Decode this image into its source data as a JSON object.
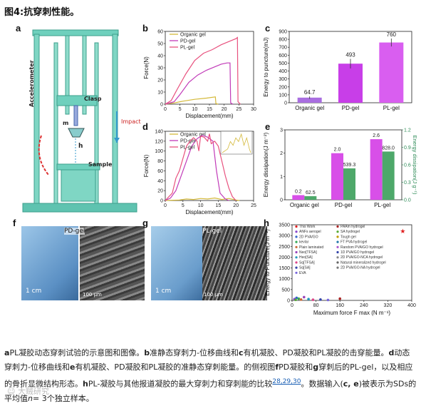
{
  "figure_title": "图4:抗穿刺性能。",
  "panels": {
    "a": {
      "label": "a",
      "clasp": "Clasp",
      "accelerometer": "Accelerometer",
      "m": "m",
      "h": "h",
      "impact": "Impact",
      "sample": "Sample"
    },
    "b": {
      "label": "b",
      "xlabel": "Displacement(mm)",
      "ylabel": "Force(N)",
      "legend": [
        "Organic gel",
        "PD-gel",
        "PL-gel"
      ]
    },
    "c": {
      "label": "c",
      "ylabel": "Energy to puncture(mJ)",
      "bar_labels": [
        "64.7",
        "493",
        "760"
      ]
    },
    "d": {
      "label": "d",
      "xlabel": "Displacement(mm)",
      "ylabel": "Force(N)",
      "legend": [
        "Organic gel",
        "PD-gel",
        "PL-gel"
      ]
    },
    "e": {
      "label": "e",
      "ylabel_left": "Energy dissipation(J m⁻²)",
      "ylabel_right": "Energy dissipation(J g⁻¹)",
      "bar_labels": [
        "0.2",
        "62.5",
        "2.0",
        "539.3",
        "2.6",
        "828.0"
      ]
    },
    "f": {
      "label": "f",
      "inset": "PD-gel",
      "scale_1": "1 cm",
      "scale_2": "100 μm"
    },
    "g": {
      "label": "g",
      "inset": "PL-gel",
      "scale_1": "1 cm",
      "scale_2": "100 μm"
    },
    "h": {
      "label": "h",
      "xlabel": "Maximum force F",
      "xlabel_sub": "max",
      "xlabel_unit": "(N m⁻¹)",
      "ylabel": "Energy to Puncture(J m⁻²)",
      "legend_left": [
        "This Work",
        "ANFs aerogel",
        "2D PVA/GO",
        "kevlar",
        "Plain laminated",
        "Neo[TFSA]",
        "Heo[SA]",
        "Sq[TFSA]",
        "Sq[SA]",
        "EVA"
      ],
      "legend_right": [
        "PAAm hydrogel",
        "SA hydrogel",
        "Tough gel",
        "FT PVA hydrogel",
        "Random PVA/GO hydrogel",
        "1D PVA/GO hydrogel",
        "2D PVA/GO-NCA hydrogel",
        "Natural mineralized hydrogel",
        "2D PVA/GO-NA hydrogel"
      ]
    }
  },
  "chart_data": [
    {
      "id": "b",
      "type": "line",
      "xlabel": "Displacement(mm)",
      "ylabel": "Force(N)",
      "xlim": [
        0,
        30
      ],
      "ylim": [
        0,
        60
      ],
      "xticks": [
        0,
        5,
        10,
        15,
        20,
        25,
        30
      ],
      "yticks": [
        0,
        10,
        20,
        30,
        40,
        50,
        60
      ],
      "series": [
        {
          "name": "Organic gel",
          "color": "#d4b93a",
          "x": [
            0,
            3,
            6,
            10,
            14,
            17,
            17.2,
            18
          ],
          "y": [
            0,
            1,
            2.5,
            4,
            5,
            6,
            0.5,
            0
          ]
        },
        {
          "name": "PD-gel",
          "color": "#c13ab8",
          "x": [
            0,
            3,
            5,
            8,
            11,
            14,
            17,
            19,
            21,
            22,
            22.2,
            23
          ],
          "y": [
            0,
            2,
            8,
            18,
            24,
            28,
            31,
            33,
            34,
            34,
            1,
            0
          ]
        },
        {
          "name": "PL-gel",
          "color": "#e8517e",
          "x": [
            0,
            2,
            4,
            7,
            10,
            13,
            16,
            19,
            22,
            24,
            24.5,
            24.7,
            25.5
          ],
          "y": [
            0,
            3,
            12,
            25,
            36,
            42,
            45,
            49,
            52,
            54,
            55,
            2,
            0
          ]
        }
      ]
    },
    {
      "id": "c",
      "type": "bar",
      "ylabel": "Energy to puncture(mJ)",
      "categories": [
        "Organic gel",
        "PD-gel",
        "PL-gel"
      ],
      "values": [
        64.7,
        493,
        760
      ],
      "errors": [
        15,
        60,
        50
      ],
      "ylim": [
        0,
        900
      ],
      "yticks": [
        0,
        100,
        200,
        300,
        400,
        500,
        600,
        700,
        800,
        900
      ],
      "colors": [
        "#a96ee0",
        "#c83ee8",
        "#d95ef0"
      ]
    },
    {
      "id": "d",
      "type": "line",
      "xlabel": "Displacement(mm)",
      "ylabel": "Force(N)",
      "xlim": [
        0,
        25
      ],
      "ylim": [
        0,
        140
      ],
      "xticks": [
        0,
        5,
        10,
        15,
        20,
        25
      ],
      "yticks": [
        0,
        20,
        40,
        60,
        80,
        100,
        120,
        140
      ],
      "series": [
        {
          "name": "Organic gel",
          "color": "#d4b93a",
          "x": [
            0,
            4,
            6,
            8,
            10,
            12,
            14,
            16,
            18,
            20,
            21
          ],
          "y": [
            0,
            1,
            3,
            2,
            4,
            3,
            5,
            2,
            4,
            1,
            0
          ]
        },
        {
          "name": "PD-gel",
          "color": "#c13ab8",
          "x": [
            0,
            1.5,
            3,
            4.5,
            6,
            7.5,
            9,
            10.5,
            12,
            13.5,
            14.5,
            15.5,
            17,
            18
          ],
          "y": [
            0,
            5,
            20,
            50,
            80,
            110,
            125,
            132,
            128,
            120,
            60,
            15,
            3,
            0
          ]
        },
        {
          "name": "PL-gel",
          "color": "#e8517e",
          "x": [
            0,
            2,
            3,
            4,
            5,
            6,
            7,
            8,
            9,
            9.5,
            10,
            11,
            12,
            12.5,
            13,
            14,
            15,
            16,
            17,
            18,
            19,
            20
          ],
          "y": [
            0,
            15,
            45,
            60,
            85,
            110,
            120,
            127,
            120,
            100,
            130,
            128,
            120,
            135,
            115,
            120,
            110,
            80,
            50,
            25,
            8,
            0
          ]
        }
      ]
    },
    {
      "id": "e",
      "type": "bar",
      "categories": [
        "Organic gel",
        "PD-gel",
        "PL-gel"
      ],
      "series": [
        {
          "name": "Energy dissipation(J m⁻²)",
          "axis": "left",
          "values": [
            0.2,
            2.0,
            2.6
          ],
          "color": "#d84fe8"
        },
        {
          "name": "Energy dissipation(J g⁻¹)",
          "axis": "right",
          "values": [
            62.5,
            539.3,
            828.0
          ],
          "color": "#4ea86a"
        }
      ],
      "ylim_left": [
        0,
        3
      ],
      "yticks_left": [
        0,
        1,
        2,
        3
      ],
      "ylim_right": [
        0,
        1.2
      ],
      "yticks_right": [
        0.0,
        0.3,
        0.6,
        0.9,
        1.2
      ]
    },
    {
      "id": "h",
      "type": "scatter",
      "xlabel": "Maximum force Fmax(N m⁻¹)",
      "ylabel": "Energy to Puncture(J m⁻²)",
      "xlim": [
        0,
        400
      ],
      "ylim": [
        0,
        3500
      ],
      "xticks": [
        0,
        80,
        160,
        240,
        320,
        400
      ],
      "yticks": [
        0,
        500,
        1000,
        1500,
        2000,
        2500,
        3000,
        3500
      ],
      "points": [
        {
          "x": 370,
          "y": 3200,
          "color": "#e02020",
          "shape": "star"
        },
        {
          "x": 8,
          "y": 60,
          "color": "#8844cc"
        },
        {
          "x": 15,
          "y": 120,
          "color": "#3366cc"
        },
        {
          "x": 22,
          "y": 80,
          "color": "#33aa55"
        },
        {
          "x": 30,
          "y": 40,
          "color": "#cc6633"
        },
        {
          "x": 40,
          "y": 150,
          "color": "#9944bb"
        },
        {
          "x": 55,
          "y": 60,
          "color": "#2299bb"
        },
        {
          "x": 70,
          "y": 30,
          "color": "#dd4488"
        },
        {
          "x": 95,
          "y": 40,
          "color": "#3344aa"
        },
        {
          "x": 160,
          "y": 80,
          "color": "#aa2222"
        },
        {
          "x": 120,
          "y": 20,
          "color": "#7766dd"
        },
        {
          "x": 12,
          "y": 25,
          "color": "#55aa33"
        }
      ]
    }
  ],
  "caption": {
    "parts": [
      {
        "t": "a",
        "b": true
      },
      {
        "t": "PL凝胶动态穿刺试验的示意图和图像。"
      },
      {
        "t": "b",
        "b": true
      },
      {
        "t": "准静态穿刺力-位移曲线和"
      },
      {
        "t": "c",
        "b": true
      },
      {
        "t": "有机凝胶、PD凝胶和PL凝胶的击穿能量。"
      },
      {
        "t": "d",
        "b": true
      },
      {
        "t": "动态穿刺力-位移曲线和"
      },
      {
        "t": "e",
        "b": true
      },
      {
        "t": "有机凝胶、PD凝胶和PL凝胶的准静态穿刺能量。的侧视图"
      },
      {
        "t": "f",
        "b": true
      },
      {
        "t": "PD凝胶和"
      },
      {
        "t": "g",
        "b": true
      },
      {
        "t": "穿刺后的PL-gel，以及相应的骨折显微结构形态。"
      },
      {
        "t": "h",
        "b": true
      },
      {
        "t": "PL-凝胶与其他报道凝胶的最大穿刺力和穿刺能的比较"
      },
      {
        "t": "28,29,30",
        "ref": true
      },
      {
        "t": "。数据输入("
      },
      {
        "t": "c, e",
        "b": true
      },
      {
        "t": ")被表示为SDs的平均值"
      },
      {
        "t": "n",
        "i": true
      },
      {
        "t": "= 3个独立样本。"
      }
    ]
  },
  "watermark": "☺ 大贼研究"
}
